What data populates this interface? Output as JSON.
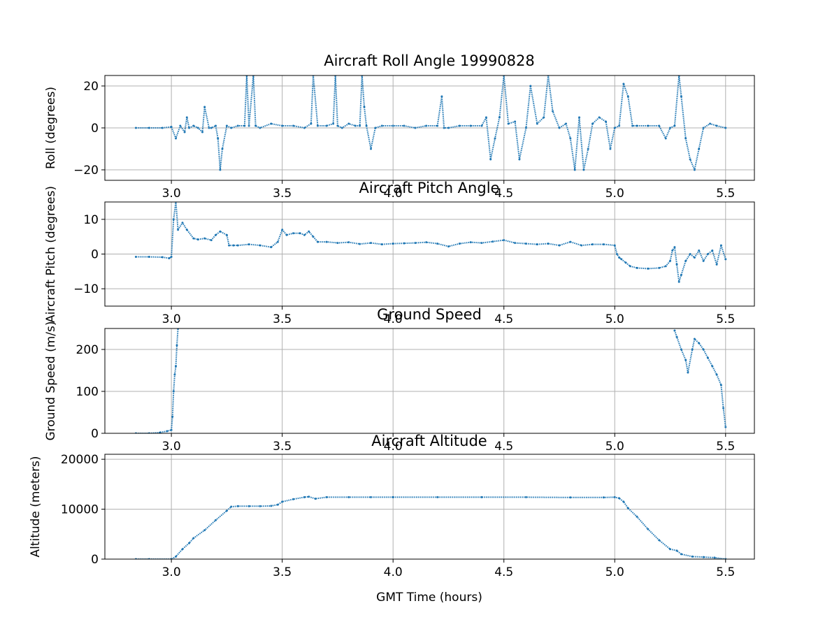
{
  "chart_data": [
    {
      "type": "scatter",
      "title": "Aircraft Roll Angle 19990828",
      "xlabel": "",
      "ylabel": "Roll (degrees)",
      "xlim": [
        2.7,
        5.63
      ],
      "ylim": [
        -25,
        25
      ],
      "xticks": [
        3.0,
        3.5,
        4.0,
        4.5,
        5.0,
        5.5
      ],
      "xtick_labels": [
        "3.0",
        "3.5",
        "4.0",
        "4.5",
        "5.0",
        "5.5"
      ],
      "yticks": [
        20,
        0,
        -20
      ],
      "ytick_labels": [
        "20",
        "0",
        "−20"
      ],
      "grid": true,
      "color": "#1f77b4",
      "series": [
        {
          "x": [
            2.84,
            2.9,
            2.96,
            3.0,
            3.02,
            3.04,
            3.06,
            3.07,
            3.08,
            3.1,
            3.12,
            3.14,
            3.15,
            3.17,
            3.18,
            3.2,
            3.21,
            3.22,
            3.23,
            3.25,
            3.27,
            3.3,
            3.33,
            3.34,
            3.35,
            3.37,
            3.38,
            3.4,
            3.45,
            3.5,
            3.55,
            3.6,
            3.63,
            3.64,
            3.66,
            3.7,
            3.73,
            3.74,
            3.75,
            3.77,
            3.8,
            3.83,
            3.85,
            3.86,
            3.87,
            3.88,
            3.9,
            3.92,
            3.95,
            4.0,
            4.05,
            4.1,
            4.15,
            4.2,
            4.22,
            4.23,
            4.25,
            4.3,
            4.35,
            4.4,
            4.42,
            4.44,
            4.46,
            4.48,
            4.5,
            4.52,
            4.55,
            4.57,
            4.6,
            4.62,
            4.65,
            4.68,
            4.7,
            4.72,
            4.75,
            4.78,
            4.8,
            4.82,
            4.84,
            4.86,
            4.88,
            4.9,
            4.93,
            4.96,
            4.98,
            5.0,
            5.02,
            5.04,
            5.06,
            5.08,
            5.1,
            5.15,
            5.2,
            5.23,
            5.25,
            5.27,
            5.29,
            5.3,
            5.32,
            5.34,
            5.36,
            5.38,
            5.4,
            5.43,
            5.46,
            5.5
          ],
          "y": [
            0,
            0,
            0,
            0.5,
            -5,
            1,
            -2,
            5,
            0,
            1,
            0,
            -2,
            10,
            0,
            0,
            1,
            -5,
            -20,
            -10,
            1,
            0,
            1,
            1,
            25,
            1,
            25,
            1,
            0,
            2,
            1,
            1,
            0,
            2,
            25,
            1,
            1,
            2,
            25,
            1,
            0,
            2,
            1,
            1,
            25,
            10,
            1,
            -10,
            0,
            1,
            1,
            1,
            0,
            1,
            1,
            15,
            0,
            0,
            1,
            1,
            1,
            5,
            -15,
            -5,
            5,
            25,
            2,
            3,
            -15,
            0,
            20,
            2,
            5,
            25,
            8,
            0,
            2,
            -5,
            -20,
            5,
            -20,
            -10,
            2,
            5,
            3,
            -10,
            0,
            1,
            21,
            15,
            1,
            1,
            1,
            1,
            -5,
            0,
            1,
            25,
            15,
            -5,
            -15,
            -20,
            -10,
            0,
            2,
            1,
            0
          ]
        }
      ]
    },
    {
      "type": "scatter",
      "title": "Aircraft Pitch Angle",
      "xlabel": "",
      "ylabel": "Aircraft Pitch (degrees)",
      "xlim": [
        2.7,
        5.63
      ],
      "ylim": [
        -15,
        15
      ],
      "xticks": [
        3.0,
        3.5,
        4.0,
        4.5,
        5.0,
        5.5
      ],
      "xtick_labels": [
        "3.0",
        "3.5",
        "4.0",
        "4.5",
        "5.0",
        "5.5"
      ],
      "yticks": [
        10,
        0,
        -10
      ],
      "ytick_labels": [
        "10",
        "0",
        "−10"
      ],
      "grid": true,
      "color": "#1f77b4",
      "series": [
        {
          "x": [
            2.84,
            2.9,
            2.96,
            2.99,
            3.0,
            3.01,
            3.02,
            3.03,
            3.05,
            3.07,
            3.1,
            3.12,
            3.15,
            3.18,
            3.2,
            3.22,
            3.25,
            3.26,
            3.28,
            3.3,
            3.35,
            3.4,
            3.45,
            3.48,
            3.5,
            3.52,
            3.55,
            3.58,
            3.6,
            3.62,
            3.64,
            3.66,
            3.7,
            3.75,
            3.8,
            3.85,
            3.9,
            3.95,
            4.0,
            4.05,
            4.1,
            4.15,
            4.2,
            4.25,
            4.3,
            4.35,
            4.4,
            4.45,
            4.5,
            4.55,
            4.6,
            4.65,
            4.7,
            4.75,
            4.8,
            4.85,
            4.9,
            4.95,
            5.0,
            5.01,
            5.02,
            5.03,
            5.05,
            5.07,
            5.1,
            5.15,
            5.2,
            5.23,
            5.25,
            5.26,
            5.27,
            5.28,
            5.29,
            5.3,
            5.32,
            5.34,
            5.36,
            5.38,
            5.4,
            5.42,
            5.44,
            5.46,
            5.48,
            5.5
          ],
          "y": [
            -0.8,
            -0.8,
            -0.9,
            -1.2,
            -0.8,
            10,
            15,
            7,
            9,
            7,
            4.5,
            4.2,
            4.5,
            4,
            5.5,
            6.5,
            5.5,
            2.5,
            2.5,
            2.5,
            2.8,
            2.5,
            2,
            3.5,
            7,
            5.5,
            6,
            6,
            5.5,
            6.5,
            5,
            3.5,
            3.5,
            3.2,
            3.4,
            2.9,
            3.2,
            2.8,
            3,
            3.1,
            3.2,
            3.4,
            3,
            2.2,
            3,
            3.4,
            3.2,
            3.6,
            4,
            3.2,
            3,
            2.8,
            3,
            2.5,
            3.5,
            2.5,
            2.8,
            2.8,
            2.5,
            0,
            -1,
            -1.5,
            -2.5,
            -3.5,
            -4,
            -4.2,
            -4,
            -3.5,
            -2,
            1,
            2,
            -3,
            -8,
            -6,
            -2,
            0,
            -1,
            1,
            -2,
            0,
            1,
            -3,
            2.5,
            -1.5
          ]
        }
      ]
    },
    {
      "type": "scatter",
      "title": "Ground Speed",
      "xlabel": "",
      "ylabel": "Ground Speed (m/s)",
      "xlim": [
        2.7,
        5.63
      ],
      "ylim": [
        0,
        250
      ],
      "xticks": [
        3.0,
        3.5,
        4.0,
        4.5,
        5.0,
        5.5
      ],
      "xtick_labels": [
        "3.0",
        "3.5",
        "4.0",
        "4.5",
        "5.0",
        "5.5"
      ],
      "yticks": [
        200,
        100,
        0
      ],
      "ytick_labels": [
        "200",
        "100",
        "0"
      ],
      "grid": true,
      "color": "#1f77b4",
      "series": [
        {
          "x": [
            2.84,
            2.9,
            2.95,
            2.98,
            3.0,
            3.005,
            3.01,
            3.015,
            3.02,
            3.025,
            3.03
          ],
          "y": [
            0,
            0,
            2,
            5,
            8,
            40,
            100,
            140,
            160,
            210,
            250
          ]
        },
        {
          "x": [
            5.27,
            5.28,
            5.3,
            5.32,
            5.33,
            5.35,
            5.36,
            5.38,
            5.4,
            5.42,
            5.44,
            5.46,
            5.48,
            5.49,
            5.5
          ],
          "y": [
            245,
            230,
            200,
            175,
            145,
            200,
            225,
            215,
            200,
            180,
            160,
            140,
            115,
            60,
            15
          ]
        }
      ]
    },
    {
      "type": "scatter",
      "title": "Aircraft Altitude",
      "xlabel": "GMT Time (hours)",
      "ylabel": "Altitude (meters)",
      "xlim": [
        2.7,
        5.63
      ],
      "ylim": [
        0,
        21000
      ],
      "xticks": [
        3.0,
        3.5,
        4.0,
        4.5,
        5.0,
        5.5
      ],
      "xtick_labels": [
        "3.0",
        "3.5",
        "4.0",
        "4.5",
        "5.0",
        "5.5"
      ],
      "yticks": [
        20000,
        10000,
        0
      ],
      "ytick_labels": [
        "20000",
        "10000",
        "0"
      ],
      "grid": true,
      "color": "#1f77b4",
      "series": [
        {
          "x": [
            2.84,
            2.9,
            3.0,
            3.02,
            3.05,
            3.08,
            3.1,
            3.15,
            3.2,
            3.25,
            3.27,
            3.3,
            3.35,
            3.4,
            3.45,
            3.48,
            3.5,
            3.55,
            3.6,
            3.62,
            3.65,
            3.7,
            3.8,
            3.9,
            4.0,
            4.2,
            4.4,
            4.6,
            4.8,
            4.95,
            5.0,
            5.02,
            5.04,
            5.06,
            5.1,
            5.15,
            5.2,
            5.25,
            5.28,
            5.3,
            5.35,
            5.4,
            5.45,
            5.5
          ],
          "y": [
            0,
            0,
            0,
            500,
            2000,
            3200,
            4200,
            5800,
            7800,
            9700,
            10500,
            10600,
            10600,
            10600,
            10650,
            10900,
            11500,
            12000,
            12400,
            12500,
            12100,
            12400,
            12400,
            12400,
            12400,
            12400,
            12400,
            12400,
            12350,
            12350,
            12400,
            12200,
            11500,
            10200,
            8500,
            6000,
            3800,
            2000,
            1700,
            1000,
            500,
            400,
            300,
            0
          ]
        }
      ]
    }
  ]
}
